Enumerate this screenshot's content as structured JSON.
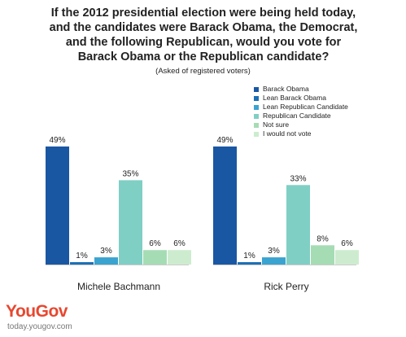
{
  "title_lines": [
    "If the 2012 presidential election were being held today,",
    "and the candidates were Barack Obama, the Democrat,",
    "and the following Republican, would you vote for",
    "Barack Obama or the Republican candidate?"
  ],
  "subtitle": "(Asked of registered voters)",
  "legend": [
    {
      "label": "Barack Obama",
      "color": "#1a57a3"
    },
    {
      "label": "Lean Barack Obama",
      "color": "#1b6fb5"
    },
    {
      "label": "Lean Republican Candidate",
      "color": "#3ba3cf"
    },
    {
      "label": "Republican Candidate",
      "color": "#7fcfc4"
    },
    {
      "label": "Not sure",
      "color": "#a5dcb4"
    },
    {
      "label": "I would not vote",
      "color": "#cdeccf"
    }
  ],
  "chart_data": {
    "type": "bar",
    "categories": [
      "Michele Bachmann",
      "Rick Perry"
    ],
    "series": [
      {
        "name": "Barack Obama",
        "values": [
          49,
          49
        ]
      },
      {
        "name": "Lean Barack Obama",
        "values": [
          1,
          1
        ]
      },
      {
        "name": "Lean Republican Candidate",
        "values": [
          3,
          3
        ]
      },
      {
        "name": "Republican Candidate",
        "values": [
          35,
          33
        ]
      },
      {
        "name": "Not sure",
        "values": [
          6,
          8
        ]
      },
      {
        "name": "I would not vote",
        "values": [
          6,
          6
        ]
      }
    ],
    "value_suffix": "%",
    "ylim": [
      0,
      50
    ],
    "grid": false,
    "legend_position": "top-right"
  },
  "brand": {
    "logo_text": "YouGov",
    "url": "today.yougov.com",
    "color": "#e8472f"
  }
}
